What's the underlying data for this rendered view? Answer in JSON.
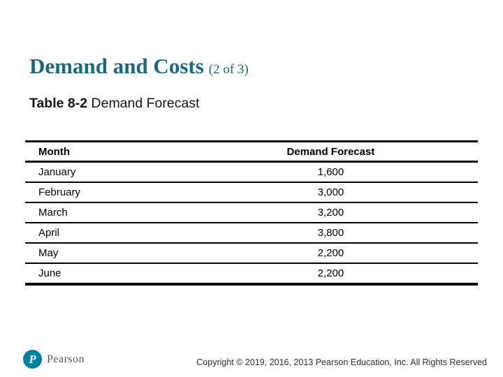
{
  "slide": {
    "title": "Demand and Costs",
    "title_suffix": "(2 of 3)",
    "caption_bold": "Table 8-2",
    "caption_rest": " Demand Forecast"
  },
  "table": {
    "columns": [
      "Month",
      "Demand Forecast"
    ],
    "rows": [
      [
        "January",
        "1,600"
      ],
      [
        "February",
        "3,000"
      ],
      [
        "March",
        "3,200"
      ],
      [
        "April",
        "3,800"
      ],
      [
        "May",
        "2,200"
      ],
      [
        "June",
        "2,200"
      ]
    ]
  },
  "footer": {
    "logo_text": "Pearson",
    "copyright": "Copyright © 2019, 2016, 2013 Pearson Education, Inc. All Rights Reserved"
  },
  "colors": {
    "title_teal": "#186a80",
    "brand_teal": "#007fa3",
    "table_line": "#000000",
    "logo_gray": "#58595b"
  }
}
